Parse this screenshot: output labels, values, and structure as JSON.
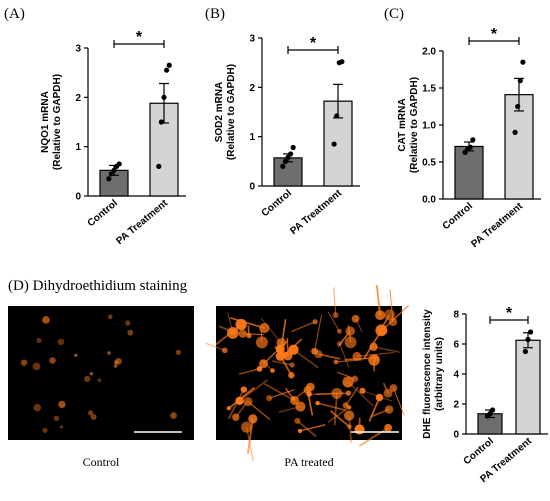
{
  "panel_labels": [
    "(A)",
    "(B)",
    "(C)",
    "(D)"
  ],
  "section_d_title": " Dihydroethidium staining",
  "image_captions": [
    "Control",
    "PA treated"
  ],
  "colors": {
    "control_bar": "#6e6e6e",
    "treatment_bar": "#d4d4d4",
    "micro_bg": "#000000",
    "stain": "#ff7a1a"
  },
  "chart_data": [
    {
      "type": "bar",
      "panel": "A",
      "categories": [
        "Control",
        "PA Treatment"
      ],
      "values": [
        0.52,
        1.88
      ],
      "errors": [
        0.1,
        0.4
      ],
      "points": [
        [
          0.35,
          0.45,
          0.52,
          0.6,
          0.65
        ],
        [
          0.6,
          1.5,
          2.0,
          2.55,
          2.65
        ]
      ],
      "ylabel_lines": [
        "NQO1 mRNA",
        "(Relative to GAPDH)"
      ],
      "ylim": [
        0,
        3
      ],
      "yticks": [
        "0",
        "1",
        "2",
        "3"
      ],
      "significance": "*"
    },
    {
      "type": "bar",
      "panel": "B",
      "categories": [
        "Control",
        "PA Treatment"
      ],
      "values": [
        0.57,
        1.72
      ],
      "errors": [
        0.08,
        0.34
      ],
      "points": [
        [
          0.4,
          0.5,
          0.58,
          0.65,
          0.78
        ],
        [
          0.85,
          1.42,
          2.5,
          2.52
        ]
      ],
      "ylabel_lines": [
        "SOD2 mRNA",
        "(Relative to GAPDH)"
      ],
      "ylim": [
        0,
        3
      ],
      "yticks": [
        "0",
        "1",
        "2",
        "3"
      ],
      "significance": "*"
    },
    {
      "type": "bar",
      "panel": "C",
      "categories": [
        "Control",
        "PA Treatment"
      ],
      "values": [
        0.71,
        1.41
      ],
      "errors": [
        0.06,
        0.22
      ],
      "points": [
        [
          0.63,
          0.68,
          0.7,
          0.8
        ],
        [
          0.9,
          1.25,
          1.6,
          1.85
        ]
      ],
      "ylabel_lines": [
        "CAT mRNA",
        "(Relative to GAPDH)"
      ],
      "ylim": [
        0,
        2
      ],
      "yticks": [
        "0.0",
        "0.5",
        "1.0",
        "1.5",
        "2.0"
      ],
      "significance": "*"
    },
    {
      "type": "bar",
      "panel": "D",
      "categories": [
        "Control",
        "PA Treatment"
      ],
      "values": [
        1.35,
        6.25
      ],
      "errors": [
        0.25,
        0.5
      ],
      "points": [
        [
          1.2,
          1.35,
          1.6
        ],
        [
          5.5,
          6.3,
          6.8
        ]
      ],
      "ylabel_lines": [
        "DHE fluorescence intensity",
        "(arbitrary units)"
      ],
      "ylim": [
        0,
        8
      ],
      "yticks": [
        "0",
        "2",
        "4",
        "6",
        "8"
      ],
      "significance": "*"
    }
  ]
}
